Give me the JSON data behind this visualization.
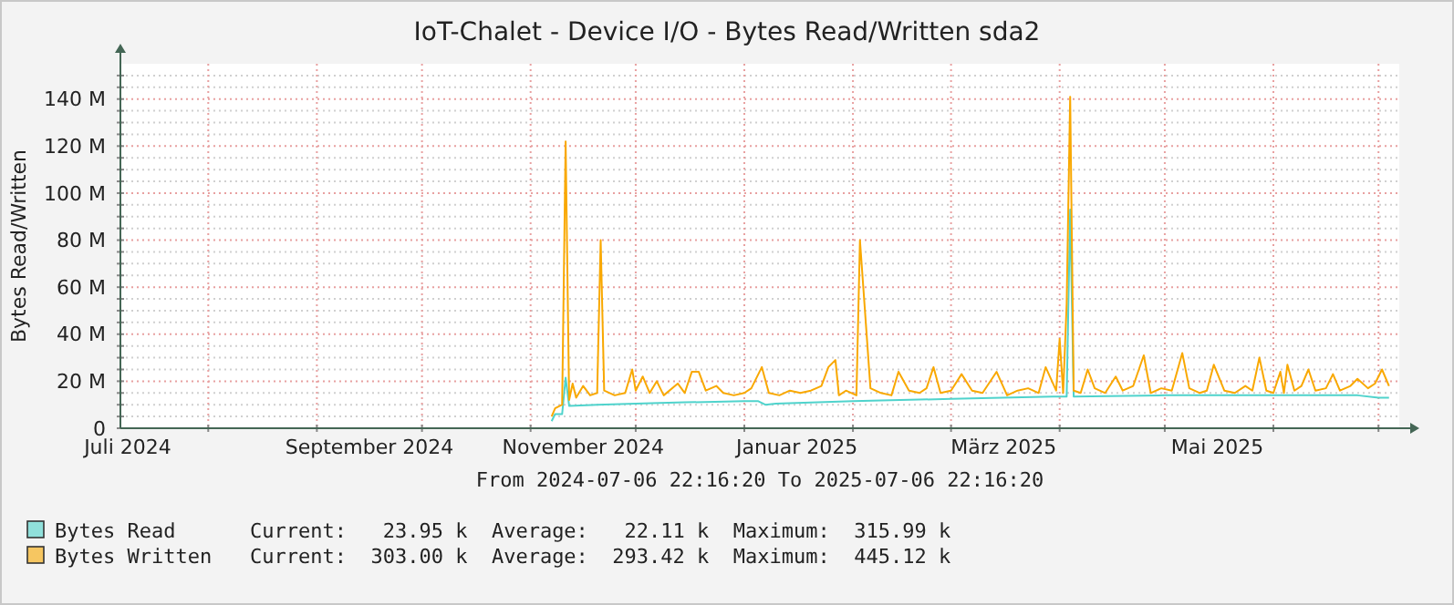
{
  "chart_data": {
    "type": "line",
    "title": "IoT-Chalet - Device I/O - Bytes Read/Written sda2",
    "ylabel": "Bytes Read/Written",
    "subtitle": "From 2024-07-06 22:16:20 To 2025-07-06 22:16:20",
    "annotations": [
      "Current:   23.95 k  Average:   22.11 k  Maximum:  315.99 k",
      "Current:  303.00 k  Average:  293.42 k  Maximum:  445.12 k"
    ],
    "xlim": [
      "2024-07-06T22:16",
      "2025-07-06T22:16"
    ],
    "xticks": [
      {
        "value": "2024-07-09",
        "label": "Juli 2024"
      },
      {
        "value": "2024-08-01",
        "label": null
      },
      {
        "value": "2024-09-01",
        "label": null
      },
      {
        "value": "2024-09-16",
        "label": "September 2024"
      },
      {
        "value": "2024-10-01",
        "label": null
      },
      {
        "value": "2024-11-01",
        "label": null
      },
      {
        "value": "2024-11-16",
        "label": "November 2024"
      },
      {
        "value": "2024-12-01",
        "label": null
      },
      {
        "value": "2025-01-01",
        "label": null
      },
      {
        "value": "2025-01-16",
        "label": "Januar 2025"
      },
      {
        "value": "2025-02-01",
        "label": null
      },
      {
        "value": "2025-03-01",
        "label": null
      },
      {
        "value": "2025-03-16",
        "label": "März 2025"
      },
      {
        "value": "2025-04-01",
        "label": null
      },
      {
        "value": "2025-05-01",
        "label": null
      },
      {
        "value": "2025-05-16",
        "label": "Mai 2025"
      },
      {
        "value": "2025-06-01",
        "label": null
      },
      {
        "value": "2025-07-01",
        "label": null
      }
    ],
    "ylim": [
      0,
      155
    ],
    "yticks": [
      {
        "value": 0,
        "label": "0"
      },
      {
        "value": 5,
        "label": null
      },
      {
        "value": 10,
        "label": null
      },
      {
        "value": 15,
        "label": null
      },
      {
        "value": 20,
        "label": "20 M"
      },
      {
        "value": 25,
        "label": null
      },
      {
        "value": 30,
        "label": null
      },
      {
        "value": 35,
        "label": null
      },
      {
        "value": 40,
        "label": "40 M"
      },
      {
        "value": 45,
        "label": null
      },
      {
        "value": 50,
        "label": null
      },
      {
        "value": 55,
        "label": null
      },
      {
        "value": 60,
        "label": "60 M"
      },
      {
        "value": 65,
        "label": null
      },
      {
        "value": 70,
        "label": null
      },
      {
        "value": 75,
        "label": null
      },
      {
        "value": 80,
        "label": "80 M"
      },
      {
        "value": 85,
        "label": null
      },
      {
        "value": 90,
        "label": null
      },
      {
        "value": 95,
        "label": null
      },
      {
        "value": 100,
        "label": "100 M"
      },
      {
        "value": 105,
        "label": null
      },
      {
        "value": 110,
        "label": null
      },
      {
        "value": 115,
        "label": null
      },
      {
        "value": 120,
        "label": "120 M"
      },
      {
        "value": 125,
        "label": null
      },
      {
        "value": 130,
        "label": null
      },
      {
        "value": 135,
        "label": null
      },
      {
        "value": 140,
        "label": "140 M"
      },
      {
        "value": 145,
        "label": null
      },
      {
        "value": 150,
        "label": null
      }
    ],
    "grid": true,
    "legend": "bottom",
    "line_style": "solid",
    "marker": "none",
    "series": [
      {
        "name": "Bytes Read",
        "color": "#4fd3cc",
        "x": [
          "2024-11-07",
          "2024-11-08",
          "2024-11-10",
          "2024-11-11",
          "2024-11-12",
          "2024-11-20",
          "2024-12-01",
          "2024-12-15",
          "2025-01-01",
          "2025-01-05",
          "2025-01-07",
          "2025-01-10",
          "2025-02-01",
          "2025-03-01",
          "2025-03-30",
          "2025-04-03",
          "2025-04-04",
          "2025-04-05",
          "2025-05-01",
          "2025-06-01",
          "2025-06-25",
          "2025-07-01",
          "2025-07-04"
        ],
        "values": [
          3,
          6,
          6,
          21.5,
          9.5,
          10,
          10.5,
          11,
          11.5,
          11.5,
          10,
          10.5,
          11.5,
          12.5,
          13.5,
          13.5,
          93,
          13.5,
          14,
          14,
          14,
          13,
          13
        ]
      },
      {
        "name": "Bytes Written",
        "color": "#f9a800",
        "x": [
          "2024-11-07",
          "2024-11-08",
          "2024-11-10",
          "2024-11-11",
          "2024-11-12",
          "2024-11-13",
          "2024-11-14",
          "2024-11-16",
          "2024-11-18",
          "2024-11-20",
          "2024-11-21",
          "2024-11-22",
          "2024-11-25",
          "2024-11-28",
          "2024-11-30",
          "2024-12-01",
          "2024-12-03",
          "2024-12-05",
          "2024-12-07",
          "2024-12-09",
          "2024-12-13",
          "2024-12-15",
          "2024-12-17",
          "2024-12-19",
          "2024-12-21",
          "2024-12-24",
          "2024-12-26",
          "2024-12-29",
          "2025-01-01",
          "2025-01-03",
          "2025-01-06",
          "2025-01-08",
          "2025-01-11",
          "2025-01-14",
          "2025-01-17",
          "2025-01-20",
          "2025-01-23",
          "2025-01-25",
          "2025-01-27",
          "2025-01-28",
          "2025-01-30",
          "2025-02-02",
          "2025-02-03",
          "2025-02-06",
          "2025-02-09",
          "2025-02-12",
          "2025-02-14",
          "2025-02-17",
          "2025-02-20",
          "2025-02-22",
          "2025-02-24",
          "2025-02-26",
          "2025-03-01",
          "2025-03-04",
          "2025-03-07",
          "2025-03-10",
          "2025-03-14",
          "2025-03-17",
          "2025-03-20",
          "2025-03-23",
          "2025-03-26",
          "2025-03-28",
          "2025-03-31",
          "2025-04-01",
          "2025-04-02",
          "2025-04-03",
          "2025-04-04",
          "2025-04-05",
          "2025-04-07",
          "2025-04-09",
          "2025-04-11",
          "2025-04-14",
          "2025-04-17",
          "2025-04-19",
          "2025-04-22",
          "2025-04-25",
          "2025-04-27",
          "2025-04-30",
          "2025-05-03",
          "2025-05-06",
          "2025-05-08",
          "2025-05-11",
          "2025-05-13",
          "2025-05-15",
          "2025-05-18",
          "2025-05-21",
          "2025-05-24",
          "2025-05-26",
          "2025-05-28",
          "2025-05-30",
          "2025-06-01",
          "2025-06-03",
          "2025-06-04",
          "2025-06-05",
          "2025-06-07",
          "2025-06-09",
          "2025-06-11",
          "2025-06-13",
          "2025-06-16",
          "2025-06-18",
          "2025-06-20",
          "2025-06-23",
          "2025-06-25",
          "2025-06-28",
          "2025-06-30",
          "2025-07-02",
          "2025-07-04"
        ],
        "values": [
          5,
          8.5,
          10,
          122,
          12,
          19,
          13,
          18,
          14,
          15,
          80,
          16,
          14,
          15,
          25,
          16,
          22,
          15,
          20,
          14,
          19,
          15,
          24,
          24,
          16,
          18,
          15,
          14,
          15,
          17,
          26,
          15,
          14,
          16,
          15,
          16,
          18,
          26,
          29,
          14,
          16,
          14,
          80,
          17,
          15,
          14,
          24,
          16,
          15,
          17,
          26,
          15,
          16,
          23,
          16,
          15,
          24,
          14,
          16,
          17,
          15,
          26,
          16,
          38,
          15,
          53,
          141,
          16,
          15,
          25,
          17,
          15,
          22,
          16,
          18,
          31,
          15,
          17,
          16,
          32,
          17,
          15,
          16,
          27,
          16,
          15,
          18,
          16,
          30,
          16,
          15,
          24,
          15,
          27,
          16,
          18,
          25,
          16,
          17,
          23,
          16,
          18,
          21,
          17,
          19,
          25,
          18
        ]
      }
    ]
  }
}
